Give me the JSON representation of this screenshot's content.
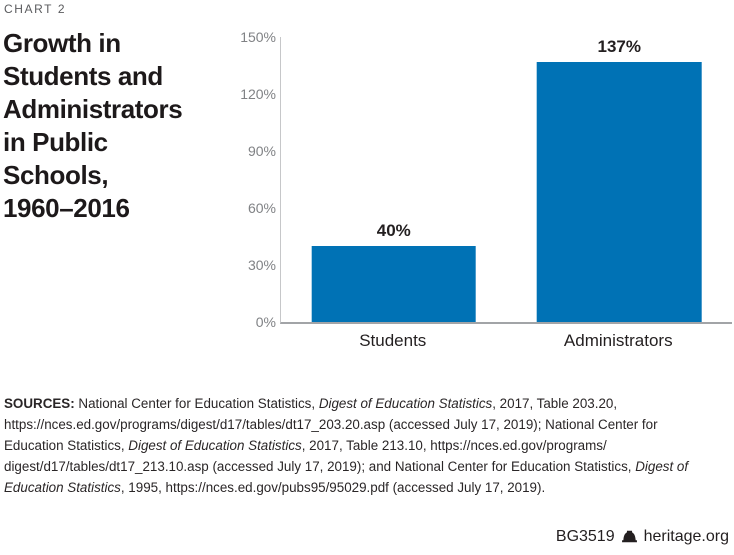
{
  "header": {
    "kicker": "CHART 2",
    "title_display": "Growth in\nStudents and\nAdministrators\nin Public\nSchools,\n1960–2016"
  },
  "chart_data": {
    "type": "bar",
    "title": "Growth in Students and Administrators in Public Schools, 1960–2016",
    "categories": [
      "Students",
      "Administrators"
    ],
    "values": [
      40,
      137
    ],
    "value_labels": [
      "40%",
      "137%"
    ],
    "xlabel": "",
    "ylabel": "",
    "ylim": [
      0,
      150
    ],
    "yticks": [
      0,
      30,
      60,
      90,
      120,
      150
    ],
    "ytick_labels": [
      "0%",
      "30%",
      "60%",
      "90%",
      "120%",
      "150%"
    ],
    "grid": false,
    "legend": false,
    "bar_color": "#0072b5"
  },
  "sources": {
    "lines": [
      [
        {
          "t": "SOURCES: ",
          "b": true
        },
        {
          "t": "National Center for Education Statistics, "
        },
        {
          "t": "Digest of Education Statistics",
          "i": true
        },
        {
          "t": ", 2017, Table 203.20,"
        }
      ],
      [
        {
          "t": "https://nces.ed.gov/programs/digest/d17/tables/dt17_203.20.asp (accessed July 17, 2019); National Center for"
        }
      ],
      [
        {
          "t": "Education Statistics, "
        },
        {
          "t": "Digest of Education Statistics",
          "i": true
        },
        {
          "t": ", 2017, Table 213.10, https://nces.ed.gov/programs/"
        }
      ],
      [
        {
          "t": "digest/d17/tables/dt17_213.10.asp (accessed July 17, 2019); and National Center for Education Statistics, "
        },
        {
          "t": "Digest of",
          "i": true
        }
      ],
      [
        {
          "t": "Education Statistics",
          "i": true
        },
        {
          "t": ", 1995, https://nces.ed.gov/pubs95/95029.pdf (accessed July 17, 2019)."
        }
      ]
    ]
  },
  "footer": {
    "report_id": "BG3519",
    "site": "heritage.org",
    "logo": "heritage-bell-icon"
  }
}
